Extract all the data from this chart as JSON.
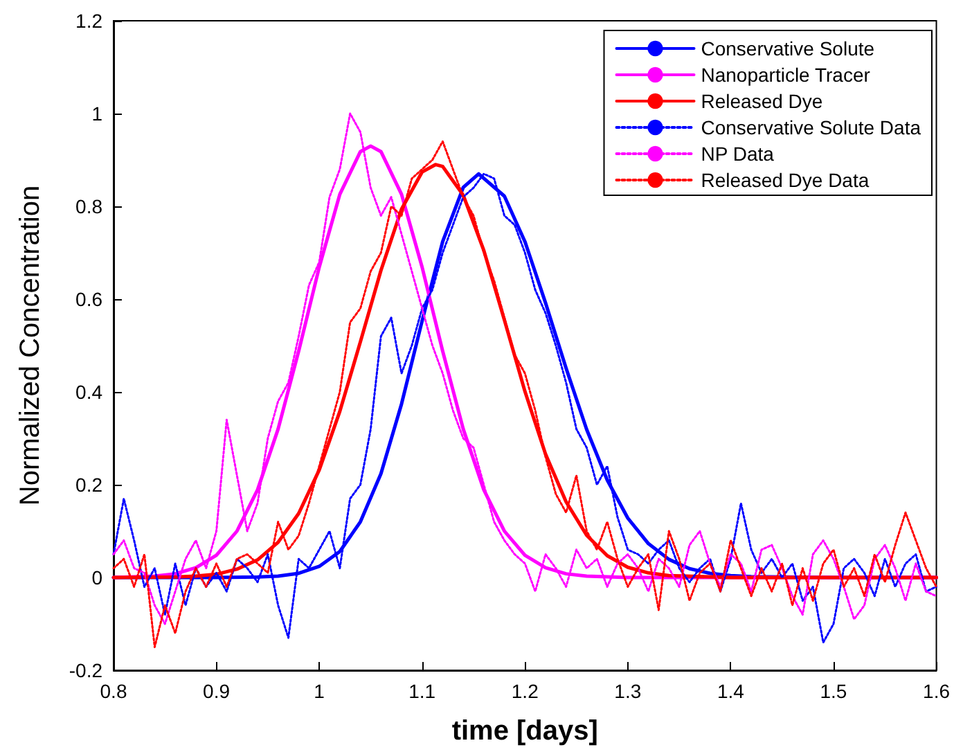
{
  "chart_data": {
    "type": "line",
    "xlabel": "time [days]",
    "ylabel": "Normalized Concentration",
    "xlim": [
      0.8,
      1.6
    ],
    "xticks": [
      0.8,
      0.9,
      1,
      1.1,
      1.2,
      1.3,
      1.4,
      1.5,
      1.6
    ],
    "ylim": [
      -0.2,
      1.2
    ],
    "yticks": [
      -0.2,
      0,
      0.2,
      0.4,
      0.6,
      0.8,
      1,
      1.2
    ],
    "grid": false,
    "legend": "top right",
    "marker": "none",
    "x": [
      0.8,
      0.81,
      0.82,
      0.83,
      0.84,
      0.85,
      0.86,
      0.87,
      0.88,
      0.89,
      0.9,
      0.91,
      0.92,
      0.93,
      0.94,
      0.95,
      0.96,
      0.97,
      0.98,
      0.99,
      1,
      1.01,
      1.02,
      1.03,
      1.04,
      1.05,
      1.06,
      1.07,
      1.08,
      1.09,
      1.1,
      1.11,
      1.12,
      1.13,
      1.14,
      1.15,
      1.16,
      1.17,
      1.18,
      1.19,
      1.2,
      1.21,
      1.22,
      1.23,
      1.24,
      1.25,
      1.26,
      1.27,
      1.28,
      1.29,
      1.3,
      1.31,
      1.32,
      1.33,
      1.34,
      1.35,
      1.36,
      1.37,
      1.38,
      1.39,
      1.4,
      1.41,
      1.42,
      1.43,
      1.44,
      1.45,
      1.46,
      1.47,
      1.48,
      1.49,
      1.5,
      1.51,
      1.52,
      1.53,
      1.54,
      1.55,
      1.56,
      1.57,
      1.58,
      1.59,
      1.6
    ],
    "series": [
      {
        "name": "Conservative Solute",
        "color": "#0000ff",
        "line_style": "solid",
        "x": [
          0.8,
          0.9,
          0.94,
          0.96,
          0.98,
          1,
          1.02,
          1.04,
          1.06,
          1.08,
          1.1,
          1.12,
          1.14,
          1.155,
          1.18,
          1.2,
          1.22,
          1.24,
          1.26,
          1.28,
          1.3,
          1.32,
          1.34,
          1.36,
          1.38,
          1.4,
          1.42,
          1.5,
          1.6
        ],
        "values": [
          0,
          0,
          0.001,
          0.003,
          0.009,
          0.024,
          0.056,
          0.12,
          0.224,
          0.374,
          0.553,
          0.724,
          0.841,
          0.87,
          0.822,
          0.724,
          0.592,
          0.451,
          0.319,
          0.21,
          0.128,
          0.073,
          0.039,
          0.019,
          0.009,
          0.004,
          0.002,
          0,
          0
        ]
      },
      {
        "name": "Nanoparticle Tracer",
        "color": "#ff00ff",
        "line_style": "solid",
        "x": [
          0.8,
          0.84,
          0.86,
          0.88,
          0.9,
          0.92,
          0.94,
          0.96,
          0.98,
          1,
          1.02,
          1.04,
          1.05,
          1.06,
          1.08,
          1.1,
          1.12,
          1.14,
          1.16,
          1.18,
          1.2,
          1.22,
          1.24,
          1.26,
          1.3,
          1.6
        ],
        "values": [
          0,
          0.003,
          0.008,
          0.021,
          0.048,
          0.1,
          0.189,
          0.32,
          0.488,
          0.669,
          0.826,
          0.918,
          0.93,
          0.918,
          0.826,
          0.669,
          0.488,
          0.32,
          0.189,
          0.1,
          0.048,
          0.021,
          0.008,
          0.003,
          0,
          0
        ]
      },
      {
        "name": "Released Dye",
        "color": "#ff0000",
        "line_style": "solid",
        "x": [
          0.8,
          0.86,
          0.88,
          0.9,
          0.92,
          0.94,
          0.96,
          0.98,
          1,
          1.02,
          1.04,
          1.06,
          1.08,
          1.1,
          1.113,
          1.12,
          1.14,
          1.16,
          1.18,
          1.2,
          1.22,
          1.24,
          1.26,
          1.28,
          1.3,
          1.32,
          1.34,
          1.4,
          1.6
        ],
        "values": [
          0,
          0.001,
          0.003,
          0.007,
          0.018,
          0.038,
          0.076,
          0.138,
          0.232,
          0.358,
          0.508,
          0.662,
          0.794,
          0.874,
          0.89,
          0.886,
          0.824,
          0.705,
          0.555,
          0.401,
          0.266,
          0.163,
          0.091,
          0.047,
          0.022,
          0.01,
          0.004,
          0,
          0
        ]
      },
      {
        "name": "Conservative Solute Data",
        "color": "#0000ff",
        "line_style": "dotted",
        "values": [
          0.05,
          0.17,
          0.08,
          -0.02,
          0.02,
          -0.08,
          0.03,
          -0.06,
          0.02,
          -0.02,
          0.01,
          -0.03,
          0.04,
          0.02,
          -0.01,
          0.05,
          -0.06,
          -0.13,
          0.04,
          0.02,
          0.06,
          0.1,
          0.02,
          0.17,
          0.2,
          0.32,
          0.52,
          0.56,
          0.44,
          0.5,
          0.58,
          0.62,
          0.7,
          0.76,
          0.82,
          0.84,
          0.87,
          0.86,
          0.78,
          0.76,
          0.7,
          0.62,
          0.57,
          0.5,
          0.42,
          0.32,
          0.28,
          0.2,
          0.24,
          0.13,
          0.06,
          0.05,
          0.03,
          0.06,
          0.08,
          0.02,
          -0.01,
          0.02,
          0.04,
          -0.03,
          0.04,
          0.16,
          0.06,
          0.01,
          0.04,
          0,
          0.03,
          -0.05,
          -0.02,
          -0.14,
          -0.1,
          0.02,
          0.04,
          0.01,
          -0.04,
          0.04,
          -0.02,
          0.03,
          0.05,
          -0.03,
          -0.02
        ]
      },
      {
        "name": "NP Data",
        "color": "#ff00ff",
        "line_style": "dotted",
        "values": [
          0.05,
          0.08,
          0.02,
          0.01,
          -0.06,
          -0.1,
          -0.03,
          0.04,
          0.08,
          0.02,
          0.1,
          0.34,
          0.22,
          0.1,
          0.16,
          0.3,
          0.38,
          0.42,
          0.52,
          0.63,
          0.68,
          0.82,
          0.88,
          1,
          0.96,
          0.84,
          0.78,
          0.82,
          0.74,
          0.66,
          0.58,
          0.5,
          0.44,
          0.36,
          0.3,
          0.28,
          0.2,
          0.12,
          0.08,
          0.05,
          0.03,
          -0.03,
          0.05,
          0.02,
          -0.02,
          0.06,
          0.02,
          0.04,
          -0.02,
          0.03,
          0.05,
          0.02,
          -0.03,
          0.04,
          0.02,
          -0.02,
          0.07,
          0.1,
          0.03,
          -0.02,
          0.05,
          0.03,
          -0.03,
          0.06,
          0.07,
          0.02,
          -0.04,
          -0.08,
          0.05,
          0.08,
          0.04,
          -0.02,
          -0.09,
          -0.06,
          0.04,
          0.07,
          0.02,
          -0.05,
          0.03,
          -0.03,
          -0.04
        ]
      },
      {
        "name": "Released Dye Data",
        "color": "#ff0000",
        "line_style": "dotted",
        "values": [
          0.02,
          0.04,
          -0.02,
          0.05,
          -0.15,
          -0.06,
          -0.12,
          -0.03,
          0.02,
          -0.02,
          0.03,
          -0.02,
          0.04,
          0.05,
          0.03,
          0.01,
          0.12,
          0.06,
          0.09,
          0.16,
          0.24,
          0.32,
          0.4,
          0.55,
          0.58,
          0.66,
          0.7,
          0.8,
          0.78,
          0.86,
          0.88,
          0.9,
          0.94,
          0.88,
          0.82,
          0.78,
          0.7,
          0.64,
          0.56,
          0.48,
          0.44,
          0.36,
          0.26,
          0.18,
          0.14,
          0.22,
          0.1,
          0.06,
          0.12,
          0.04,
          -0.02,
          0.02,
          0.05,
          -0.07,
          0.1,
          0.04,
          -0.05,
          0.01,
          0.03,
          -0.03,
          0.08,
          0.02,
          -0.04,
          0.02,
          -0.03,
          0.03,
          -0.06,
          0.02,
          -0.05,
          0.03,
          0.06,
          -0.02,
          0.02,
          -0.04,
          0.05,
          -0.01,
          0.07,
          0.14,
          0.08,
          0.02,
          -0.02
        ]
      }
    ]
  }
}
